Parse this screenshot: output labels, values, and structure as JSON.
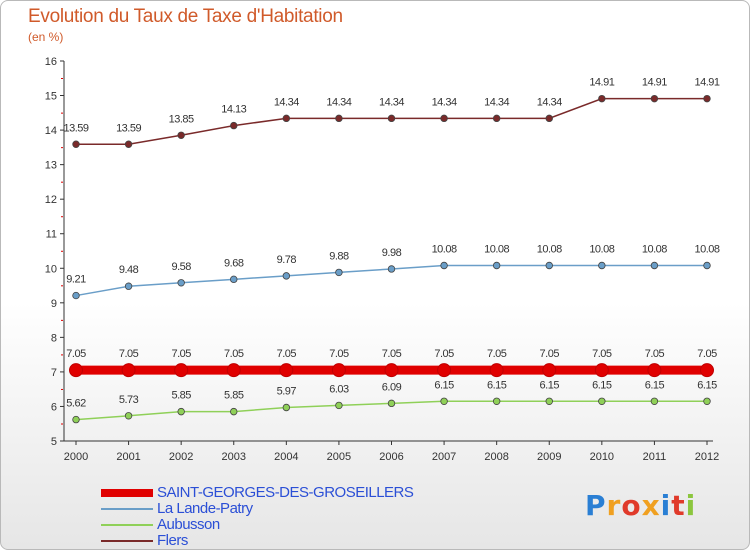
{
  "chart_data": {
    "type": "line",
    "title": "Evolution du Taux de Taxe d'Habitation",
    "ylabel": "(en %)",
    "xlabel": "",
    "ylim": [
      5,
      16
    ],
    "yticks": [
      "5",
      "6",
      "7",
      "8",
      "9",
      "10",
      "11",
      "12",
      "13",
      "14",
      "15",
      "16"
    ],
    "categories": [
      "2000",
      "2001",
      "2002",
      "2003",
      "2004",
      "2005",
      "2006",
      "2007",
      "2008",
      "2009",
      "2010",
      "2011",
      "2012"
    ],
    "series": [
      {
        "name": "Flers",
        "color": "#7a2a2a",
        "values": [
          13.59,
          13.59,
          13.85,
          14.13,
          14.34,
          14.34,
          14.34,
          14.34,
          14.34,
          14.34,
          14.91,
          14.91,
          14.91
        ],
        "labels": [
          "13.59",
          "13.59",
          "13.85",
          "14.13",
          "14.34",
          "14.34",
          "14.34",
          "14.34",
          "14.34",
          "14.34",
          "14.91",
          "14.91",
          "14.91"
        ]
      },
      {
        "name": "La Lande-Patry",
        "color": "#6a9ec8",
        "values": [
          9.21,
          9.48,
          9.58,
          9.68,
          9.78,
          9.88,
          9.98,
          10.08,
          10.08,
          10.08,
          10.08,
          10.08,
          10.08
        ],
        "labels": [
          "9.21",
          "9.48",
          "9.58",
          "9.68",
          "9.78",
          "9.88",
          "9.98",
          "10.08",
          "10.08",
          "10.08",
          "10.08",
          "10.08",
          "10.08"
        ]
      },
      {
        "name": "SAINT-GEORGES-DES-GROSEILLERS",
        "color": "#e00000",
        "values": [
          7.05,
          7.05,
          7.05,
          7.05,
          7.05,
          7.05,
          7.05,
          7.05,
          7.05,
          7.05,
          7.05,
          7.05,
          7.05
        ],
        "labels": [
          "7.05",
          "7.05",
          "7.05",
          "7.05",
          "7.05",
          "7.05",
          "7.05",
          "7.05",
          "7.05",
          "7.05",
          "7.05",
          "7.05",
          "7.05"
        ]
      },
      {
        "name": "Aubusson",
        "color": "#8fd058",
        "values": [
          5.62,
          5.73,
          5.85,
          5.85,
          5.97,
          6.03,
          6.09,
          6.15,
          6.15,
          6.15,
          6.15,
          6.15,
          6.15
        ],
        "labels": [
          "5.62",
          "5.73",
          "5.85",
          "5.85",
          "5.97",
          "6.03",
          "6.09",
          "6.15",
          "6.15",
          "6.15",
          "6.15",
          "6.15",
          "6.15"
        ]
      }
    ],
    "legend": [
      {
        "name": "SAINT-GEORGES-DES-GROSEILLERS",
        "color": "#e00000"
      },
      {
        "name": "La Lande-Patry",
        "color": "#6a9ec8"
      },
      {
        "name": "Aubusson",
        "color": "#8fd058"
      },
      {
        "name": "Flers",
        "color": "#7a2a2a"
      }
    ],
    "grid": false
  },
  "logo": {
    "letters": [
      "P",
      "r",
      "o",
      "x",
      "i",
      "t",
      "i"
    ],
    "colors": [
      "#2a7fd4",
      "#f0a020",
      "#e03a2a",
      "#f0a020",
      "#2a7fd4",
      "#e03a2a",
      "#8cc63e"
    ]
  }
}
